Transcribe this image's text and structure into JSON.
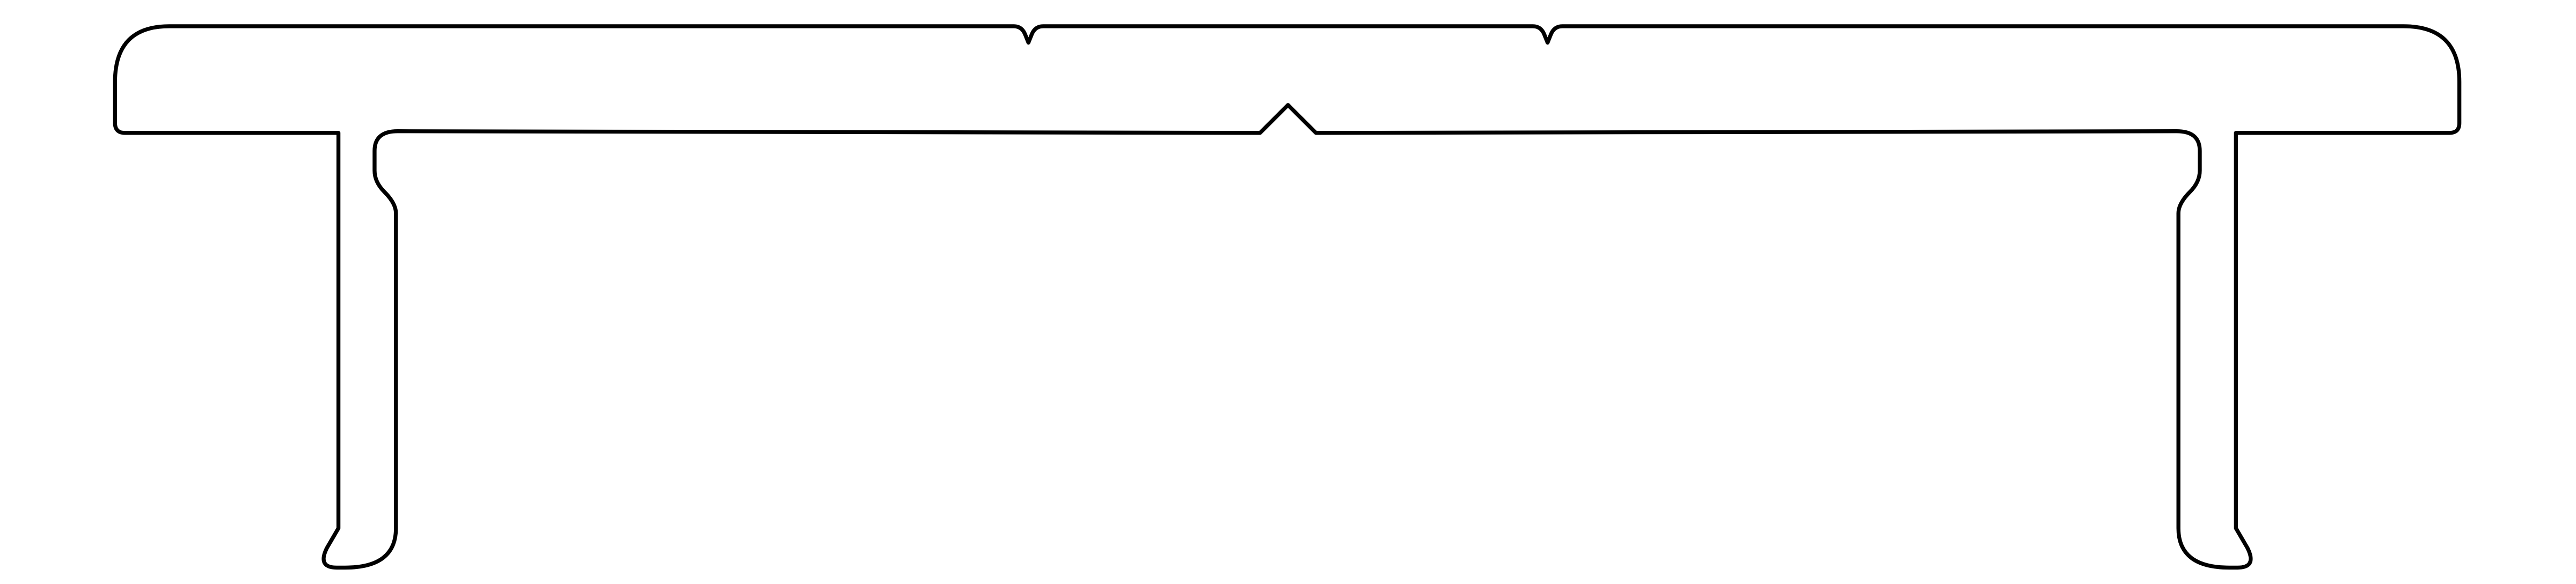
{
  "drawing": {
    "background_color": "#ffffff",
    "line_color": "#000000",
    "shape": "extrusion-profile-outline"
  }
}
